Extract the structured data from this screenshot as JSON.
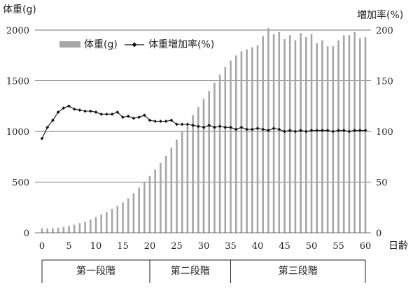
{
  "chart_data": {
    "type": "bar+line",
    "y_left_label": "体重(g)",
    "y_right_label": "増加率(%)",
    "x_label": "日齢",
    "y_left_range": [
      0,
      2000
    ],
    "y_right_range": [
      0,
      200
    ],
    "x_range": [
      0,
      60
    ],
    "y_left_ticks": [
      "0",
      "500",
      "1000",
      "1500",
      "2000"
    ],
    "y_right_ticks": [
      "0",
      "50",
      "100",
      "150",
      "200"
    ],
    "x_ticks": [
      "0",
      "5",
      "10",
      "15",
      "20",
      "25",
      "30",
      "35",
      "40",
      "45",
      "50",
      "55",
      "60"
    ],
    "grid": "horizontal",
    "legend_position": "top-left",
    "series": [
      {
        "name": "体重(g)",
        "type": "bar",
        "color": "#a6a6a6",
        "x": [
          0,
          1,
          2,
          3,
          4,
          5,
          6,
          7,
          8,
          9,
          10,
          11,
          12,
          13,
          14,
          15,
          16,
          17,
          18,
          19,
          20,
          21,
          22,
          23,
          24,
          25,
          26,
          27,
          28,
          29,
          30,
          31,
          32,
          33,
          34,
          35,
          36,
          37,
          38,
          39,
          40,
          41,
          42,
          43,
          44,
          45,
          46,
          47,
          48,
          49,
          50,
          51,
          52,
          53,
          54,
          55,
          56,
          57,
          58,
          59,
          60
        ],
        "values": [
          45,
          43,
          45,
          50,
          57,
          68,
          80,
          95,
          110,
          130,
          155,
          180,
          205,
          235,
          265,
          300,
          340,
          390,
          445,
          500,
          560,
          625,
          690,
          760,
          840,
          920,
          1000,
          1080,
          1160,
          1240,
          1320,
          1400,
          1480,
          1560,
          1635,
          1700,
          1750,
          1790,
          1810,
          1830,
          1850,
          1940,
          2020,
          1960,
          1980,
          1910,
          1950,
          1900,
          1970,
          1930,
          1960,
          1870,
          1900,
          1840,
          1840,
          1900,
          1950,
          1950,
          1980,
          1920,
          1930
        ]
      },
      {
        "name": "体重増加率(%)",
        "type": "line",
        "color": "#111111",
        "x": [
          0,
          1,
          2,
          3,
          4,
          5,
          6,
          7,
          8,
          9,
          10,
          11,
          12,
          13,
          14,
          15,
          16,
          17,
          18,
          19,
          20,
          21,
          22,
          23,
          24,
          25,
          26,
          27,
          28,
          29,
          30,
          31,
          32,
          33,
          34,
          35,
          36,
          37,
          38,
          39,
          40,
          41,
          42,
          43,
          44,
          45,
          46,
          47,
          48,
          49,
          50,
          51,
          52,
          53,
          54,
          55,
          56,
          57,
          58,
          59,
          60
        ],
        "values": [
          93,
          104,
          111,
          119,
          123,
          125,
          122,
          121,
          120,
          120,
          119,
          117,
          117,
          117,
          119,
          114,
          115,
          113,
          114,
          116,
          111,
          110,
          110,
          110,
          111,
          107,
          107,
          107,
          106,
          105,
          104,
          106,
          104,
          105,
          104,
          104,
          102,
          104,
          102,
          102,
          103,
          102,
          101,
          103,
          102,
          100,
          101,
          100,
          101,
          100,
          101,
          101,
          101,
          101,
          100,
          101,
          101,
          100,
          101,
          101,
          101
        ]
      }
    ],
    "stages": [
      {
        "label": "第一段階",
        "from": 0,
        "to": 20
      },
      {
        "label": "第二段階",
        "from": 20,
        "to": 35
      },
      {
        "label": "第三段階",
        "from": 35,
        "to": 60
      }
    ]
  }
}
